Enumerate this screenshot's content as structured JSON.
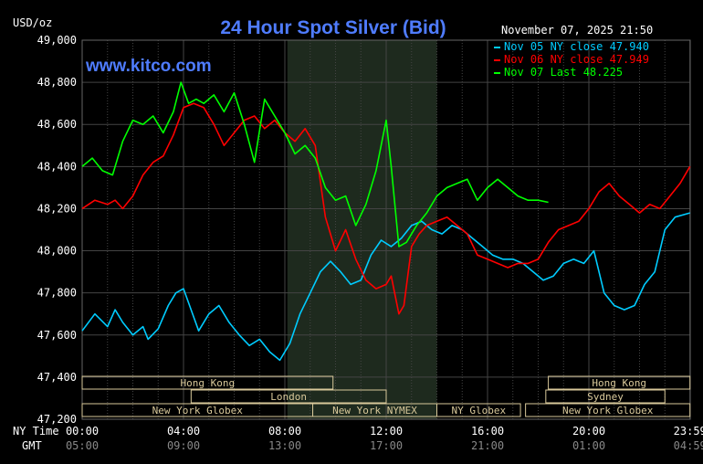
{
  "header": {
    "unit": "USD/oz",
    "title": "24 Hour Spot Silver (Bid)",
    "timestamp": "November 07, 2025 21:50",
    "watermark": "www.kitco.com"
  },
  "axis_row_labels": {
    "ny": "NY Time",
    "gmt": "GMT"
  },
  "chart_data": {
    "type": "line",
    "title": "24 Hour Spot Silver (Bid)",
    "ylabel": "USD/oz",
    "ylim": [
      47.2,
      49.0
    ],
    "yticks": [
      "49,000",
      "48,800",
      "48,600",
      "48,400",
      "48,200",
      "48,000",
      "47,800",
      "47,600",
      "47,400",
      "47,200"
    ],
    "ytick_values": [
      49.0,
      48.8,
      48.6,
      48.4,
      48.2,
      48.0,
      47.8,
      47.6,
      47.4,
      47.2
    ],
    "xlim_hours": [
      0,
      24
    ],
    "xticks_ny": [
      "00:00",
      "04:00",
      "08:00",
      "12:00",
      "16:00",
      "20:00",
      "23:59"
    ],
    "xticks_gmt": [
      "05:00",
      "09:00",
      "13:00",
      "17:00",
      "21:00",
      "01:00",
      "04:59"
    ],
    "xtick_hours": [
      0,
      4,
      8,
      12,
      16,
      20,
      24
    ],
    "grid": true,
    "legend_position": "top-right",
    "colors": {
      "nov05": "#00ccff",
      "nov06": "#ff0000",
      "nov07": "#00ff00",
      "shade": "#1e2a1e",
      "grid": "#444444",
      "title": "#4f7cff",
      "band": "#d8c89a"
    },
    "legend": [
      {
        "text": "Nov 05 NY close 47.940",
        "color": "#00ccff"
      },
      {
        "text": "Nov 06 NY close 47.949",
        "color": "#ff0000"
      },
      {
        "text": "Nov 07 Last 48.225",
        "color": "#00ff00"
      }
    ],
    "shaded_hours": [
      8.1,
      14.0
    ],
    "series": [
      {
        "name": "Nov 05",
        "color": "#00ccff",
        "x": [
          0,
          0.5,
          1,
          1.3,
          1.6,
          2.0,
          2.4,
          2.6,
          3.0,
          3.4,
          3.7,
          4.0,
          4.3,
          4.6,
          5.0,
          5.4,
          5.8,
          6.2,
          6.6,
          7.0,
          7.4,
          7.8,
          8.2,
          8.6,
          9.0,
          9.4,
          9.8,
          10.2,
          10.6,
          11.0,
          11.4,
          11.8,
          12.2,
          12.6,
          13.0,
          13.4,
          13.8,
          14.2,
          14.6,
          15.0,
          15.4,
          15.8,
          16.2,
          16.6,
          17.0,
          17.4,
          17.8,
          18.2,
          18.6,
          19.0,
          19.4,
          19.8,
          20.2,
          20.6,
          21.0,
          21.4,
          21.8,
          22.2,
          22.6,
          23.0,
          23.4,
          23.99
        ],
        "y": [
          47.62,
          47.7,
          47.64,
          47.72,
          47.66,
          47.6,
          47.64,
          47.58,
          47.63,
          47.74,
          47.8,
          47.82,
          47.72,
          47.62,
          47.7,
          47.74,
          47.66,
          47.6,
          47.55,
          47.58,
          47.52,
          47.48,
          47.56,
          47.7,
          47.8,
          47.9,
          47.95,
          47.9,
          47.84,
          47.86,
          47.98,
          48.05,
          48.02,
          48.06,
          48.12,
          48.14,
          48.1,
          48.08,
          48.12,
          48.1,
          48.06,
          48.02,
          47.98,
          47.96,
          47.96,
          47.94,
          47.9,
          47.86,
          47.88,
          47.94,
          47.96,
          47.94,
          48.0,
          47.8,
          47.74,
          47.72,
          47.74,
          47.84,
          47.9,
          48.1,
          48.16,
          48.18
        ]
      },
      {
        "name": "Nov 06",
        "color": "#ff0000",
        "x": [
          0,
          0.5,
          1.0,
          1.3,
          1.6,
          2.0,
          2.4,
          2.8,
          3.2,
          3.6,
          4.0,
          4.4,
          4.8,
          5.2,
          5.6,
          6.0,
          6.4,
          6.8,
          7.2,
          7.6,
          8.0,
          8.4,
          8.8,
          9.2,
          9.6,
          10.0,
          10.4,
          10.8,
          11.2,
          11.6,
          12.0,
          12.2,
          12.5,
          12.7,
          13.0,
          13.3,
          13.6,
          14.0,
          14.4,
          14.8,
          15.2,
          15.6,
          16.0,
          16.4,
          16.8,
          17.2,
          17.6,
          18.0,
          18.4,
          18.8,
          19.2,
          19.6,
          20.0,
          20.4,
          20.8,
          21.2,
          21.6,
          22.0,
          22.4,
          22.8,
          23.2,
          23.6,
          23.99
        ],
        "y": [
          48.2,
          48.24,
          48.22,
          48.24,
          48.2,
          48.26,
          48.36,
          48.42,
          48.45,
          48.55,
          48.68,
          48.7,
          48.68,
          48.6,
          48.5,
          48.56,
          48.62,
          48.64,
          48.58,
          48.62,
          48.56,
          48.52,
          48.58,
          48.5,
          48.16,
          48.0,
          48.1,
          47.96,
          47.86,
          47.82,
          47.84,
          47.88,
          47.7,
          47.74,
          48.02,
          48.08,
          48.12,
          48.14,
          48.16,
          48.12,
          48.08,
          47.98,
          47.96,
          47.94,
          47.92,
          47.94,
          47.94,
          47.96,
          48.04,
          48.1,
          48.12,
          48.14,
          48.2,
          48.28,
          48.32,
          48.26,
          48.22,
          48.18,
          48.22,
          48.2,
          48.26,
          48.32,
          48.4
        ]
      },
      {
        "name": "Nov 07",
        "color": "#00ff00",
        "x": [
          0,
          0.4,
          0.8,
          1.2,
          1.6,
          2.0,
          2.4,
          2.8,
          3.2,
          3.6,
          3.9,
          4.2,
          4.5,
          4.8,
          5.2,
          5.6,
          6.0,
          6.4,
          6.8,
          7.2,
          7.6,
          8.0,
          8.4,
          8.8,
          9.2,
          9.6,
          10.0,
          10.4,
          10.8,
          11.2,
          11.6,
          12.0,
          12.2,
          12.5,
          12.8,
          13.2,
          13.6,
          14.0,
          14.4,
          14.8,
          15.2,
          15.6,
          16.0,
          16.4,
          16.8,
          17.2,
          17.6,
          18.0,
          18.4
        ],
        "y": [
          48.4,
          48.44,
          48.38,
          48.36,
          48.52,
          48.62,
          48.6,
          48.64,
          48.56,
          48.66,
          48.8,
          48.7,
          48.72,
          48.7,
          48.74,
          48.66,
          48.75,
          48.6,
          48.42,
          48.72,
          48.64,
          48.56,
          48.46,
          48.5,
          48.44,
          48.3,
          48.24,
          48.26,
          48.12,
          48.22,
          48.38,
          48.62,
          48.4,
          48.02,
          48.04,
          48.12,
          48.18,
          48.26,
          48.3,
          48.32,
          48.34,
          48.24,
          48.3,
          48.34,
          48.3,
          48.26,
          48.24,
          48.24,
          48.23
        ]
      }
    ]
  },
  "sessions": [
    {
      "label": "Hong Kong",
      "row": 0,
      "start": 0,
      "end": 9.9
    },
    {
      "label": "Hong Kong",
      "row": 0,
      "start": 18.4,
      "end": 23.99
    },
    {
      "label": "London",
      "row": 1,
      "start": 4.3,
      "end": 12.0
    },
    {
      "label": "Sydney",
      "row": 1,
      "start": 18.3,
      "end": 23.0
    },
    {
      "label": "New York Globex",
      "row": 2,
      "start": 0,
      "end": 9.1
    },
    {
      "label": "New York NYMEX",
      "row": 2,
      "start": 9.1,
      "end": 14.0
    },
    {
      "label": "NY Globex",
      "row": 2,
      "start": 14.0,
      "end": 17.3
    },
    {
      "label": "New York Globex",
      "row": 2,
      "start": 17.5,
      "end": 23.99
    }
  ]
}
